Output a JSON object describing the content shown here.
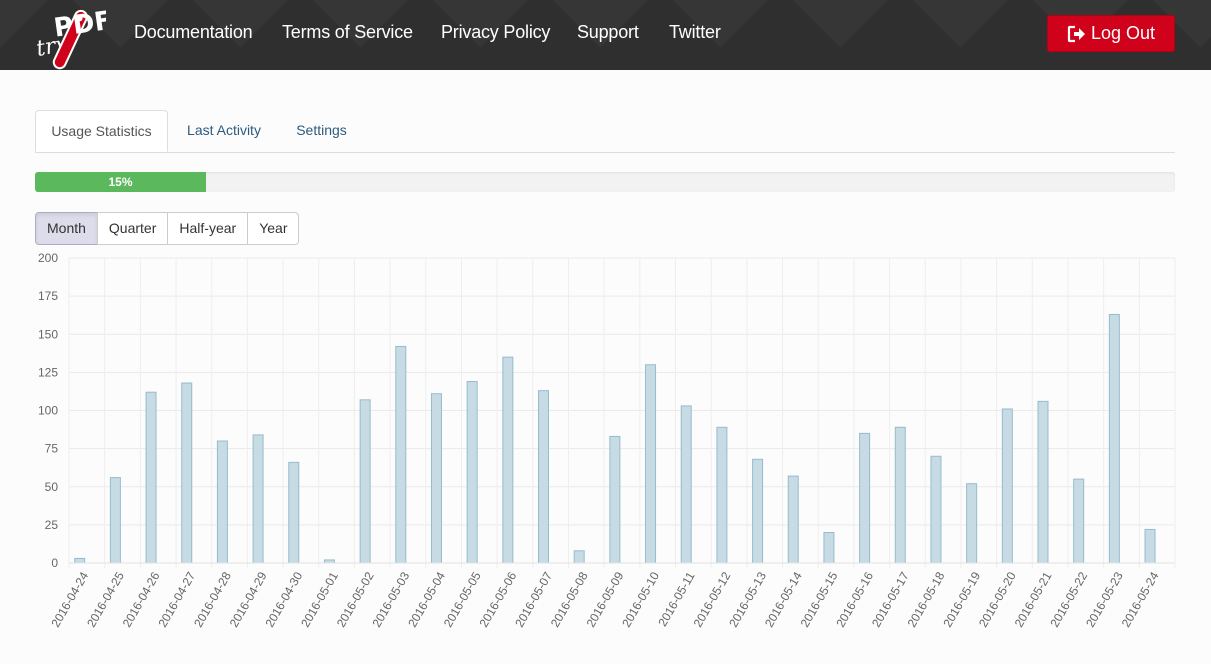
{
  "header": {
    "logo_text": "tryPDF",
    "nav": [
      "Documentation",
      "Terms of Service",
      "Privacy Policy",
      "Support",
      "Twitter"
    ],
    "logout_label": "Log Out"
  },
  "tabs": [
    {
      "label": "Usage Statistics",
      "active": true
    },
    {
      "label": "Last Activity",
      "active": false
    },
    {
      "label": "Settings",
      "active": false
    }
  ],
  "progress": {
    "label": "15%",
    "value": 0.15,
    "color": "#5cb85c"
  },
  "range_buttons": [
    {
      "label": "Month",
      "active": true
    },
    {
      "label": "Quarter",
      "active": false
    },
    {
      "label": "Half-year",
      "active": false
    },
    {
      "label": "Year",
      "active": false
    }
  ],
  "colors": {
    "accent": "#d0021b",
    "bar_fill": "#c7dbe5",
    "bar_stroke": "#97bbcd"
  },
  "chart_data": {
    "type": "bar",
    "title": "",
    "xlabel": "",
    "ylabel": "",
    "ylim": [
      0,
      200
    ],
    "yticks": [
      0,
      25,
      50,
      75,
      100,
      125,
      150,
      175,
      200
    ],
    "grid": true,
    "categories": [
      "2016-04-24",
      "2016-04-25",
      "2016-04-26",
      "2016-04-27",
      "2016-04-28",
      "2016-04-29",
      "2016-04-30",
      "2016-05-01",
      "2016-05-02",
      "2016-05-03",
      "2016-05-04",
      "2016-05-05",
      "2016-05-06",
      "2016-05-07",
      "2016-05-08",
      "2016-05-09",
      "2016-05-10",
      "2016-05-11",
      "2016-05-12",
      "2016-05-13",
      "2016-05-14",
      "2016-05-15",
      "2016-05-16",
      "2016-05-17",
      "2016-05-18",
      "2016-05-19",
      "2016-05-20",
      "2016-05-21",
      "2016-05-22",
      "2016-05-23",
      "2016-05-24"
    ],
    "values": [
      3,
      56,
      112,
      118,
      80,
      84,
      66,
      2,
      107,
      142,
      111,
      119,
      135,
      113,
      8,
      83,
      130,
      103,
      89,
      68,
      57,
      20,
      85,
      89,
      70,
      52,
      101,
      106,
      55,
      163,
      22
    ]
  }
}
